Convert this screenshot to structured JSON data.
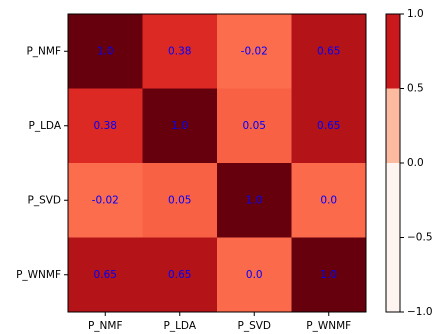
{
  "chart_data": {
    "type": "heatmap",
    "rows": [
      "P_NMF",
      "P_LDA",
      "P_SVD",
      "P_WNMF"
    ],
    "columns": [
      "P_NMF",
      "P_LDA",
      "P_SVD",
      "P_WNMF"
    ],
    "values": [
      [
        1.0,
        0.38,
        -0.02,
        0.65
      ],
      [
        0.38,
        1.0,
        0.05,
        0.65
      ],
      [
        -0.02,
        0.05,
        1.0,
        0.0
      ],
      [
        0.65,
        0.65,
        0.0,
        1.0
      ]
    ],
    "value_labels": [
      [
        "1.0",
        "0.38",
        "-0.02",
        "0.65"
      ],
      [
        "0.38",
        "1.0",
        "0.05",
        "0.65"
      ],
      [
        "-0.02",
        "0.05",
        "1.0",
        "0.0"
      ],
      [
        "0.65",
        "0.65",
        "0.0",
        "1.0"
      ]
    ],
    "value_label_color": "#0000ff",
    "colormap": "Reds",
    "colorbar": {
      "range": [
        -1.0,
        1.0
      ],
      "tick_values": [
        1.0,
        0.5,
        0.0,
        -0.5,
        -1.0
      ],
      "tick_labels": [
        "1.0",
        "0.5",
        "0.0",
        "−0.5",
        "−1.0"
      ],
      "bands": [
        {
          "from": -1.0,
          "to": 0.0,
          "color": "#fff5f0"
        },
        {
          "from": 0.0,
          "to": 0.5,
          "color": "#fcbba1"
        },
        {
          "from": 0.5,
          "to": 1.0,
          "color": "#cb181d"
        }
      ]
    },
    "title": "",
    "xlabel": "",
    "ylabel": ""
  }
}
